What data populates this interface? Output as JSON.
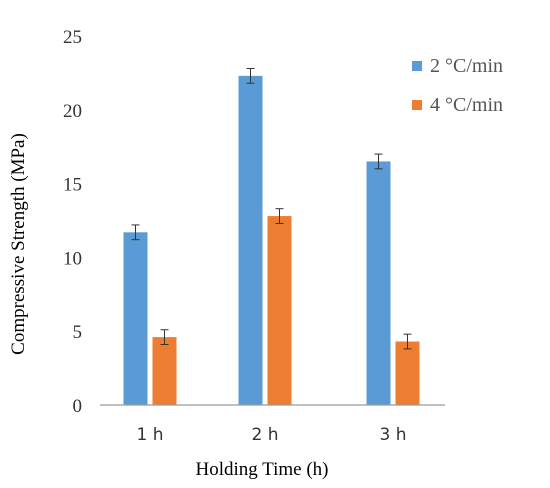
{
  "chart_data": {
    "type": "bar",
    "categories": [
      "1 h",
      "2 h",
      "3 h"
    ],
    "series": [
      {
        "name": "2 °C/min",
        "color": "#5B9BD5",
        "values": [
          11.7,
          22.3,
          16.5
        ],
        "errors": [
          0.5,
          0.5,
          0.5
        ]
      },
      {
        "name": "4 °C/min",
        "color": "#ED7D31",
        "values": [
          4.6,
          12.8,
          4.3
        ],
        "errors": [
          0.5,
          0.5,
          0.5
        ]
      }
    ],
    "xlabel": "Holding Time (h)",
    "ylabel": "Compressive Strength (MPa)",
    "ylim": [
      0,
      25
    ],
    "yticks": [
      "0",
      "5",
      "10",
      "15",
      "20",
      "25"
    ],
    "grid": false,
    "legend_position": "top-right"
  }
}
